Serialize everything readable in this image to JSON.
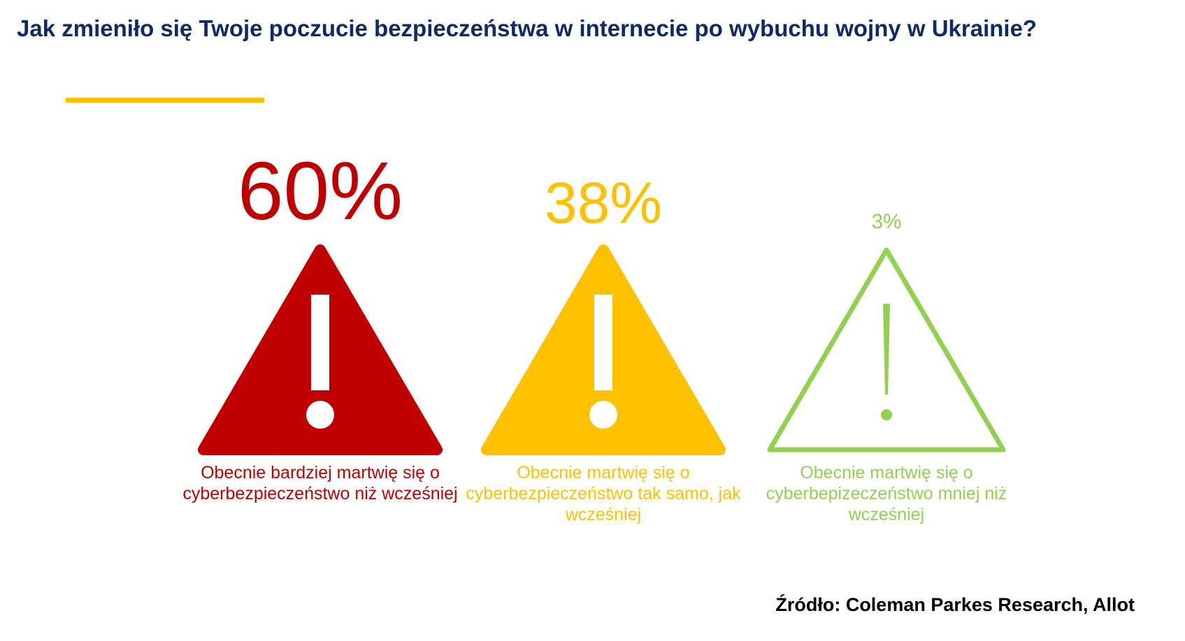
{
  "title": "Jak zmieniło się Twoje poczucie bezpieczeństwa w internecie po wybuchu wojny w Ukrainie?",
  "source": "Źródło: Coleman Parkes Research, Allot",
  "colors": {
    "title": "#0e2a6b",
    "accent_line": "#ffc000",
    "red": "#c00000",
    "yellow": "#ffc000",
    "green": "#92d050"
  },
  "chart_data": {
    "type": "bar",
    "title": "Jak zmieniło się Twoje poczucie bezpieczeństwa w internecie po wybuchu wojny w Ukrainie?",
    "unit": "%",
    "items": [
      {
        "label": "Obecnie bardziej martwię się o cyberbezpieczeństwo niż wcześniej",
        "value": 60,
        "display": "60%",
        "color": "#c00000",
        "icon": "warning-triangle-filled-icon"
      },
      {
        "label": "Obecnie martwię się o cyberbezpieczeństwo tak samo, jak wcześniej",
        "value": 38,
        "display": "38%",
        "color": "#ffc000",
        "icon": "warning-triangle-filled-icon"
      },
      {
        "label": "Obecnie martwię się o cyberbepizeczeństwo mniej niż wcześniej",
        "value": 3,
        "display": "3%",
        "color": "#92d050",
        "icon": "warning-triangle-outline-icon"
      }
    ]
  }
}
